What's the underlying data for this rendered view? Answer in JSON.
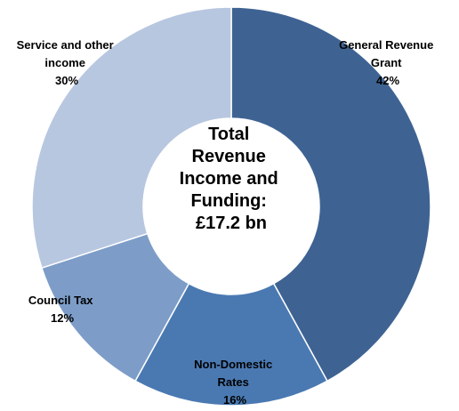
{
  "chart_data": {
    "type": "pie",
    "variant": "donut",
    "center_text": [
      "Total",
      "Revenue",
      "Income and",
      "Funding:",
      "£17.2 bn"
    ],
    "slices": [
      {
        "label": [
          "General Revenue",
          "Grant"
        ],
        "percent_label": "42%",
        "value": 42,
        "color": "#3E6393"
      },
      {
        "label": [
          "Non-Domestic",
          "Rates"
        ],
        "percent_label": "16%",
        "value": 16,
        "color": "#4A79B2"
      },
      {
        "label": [
          "Council Tax"
        ],
        "percent_label": "12%",
        "value": 12,
        "color": "#7D9DC8"
      },
      {
        "label": [
          "Service and other",
          "income"
        ],
        "percent_label": "30%",
        "value": 30,
        "color": "#B8C7E0"
      }
    ],
    "legend": false
  }
}
